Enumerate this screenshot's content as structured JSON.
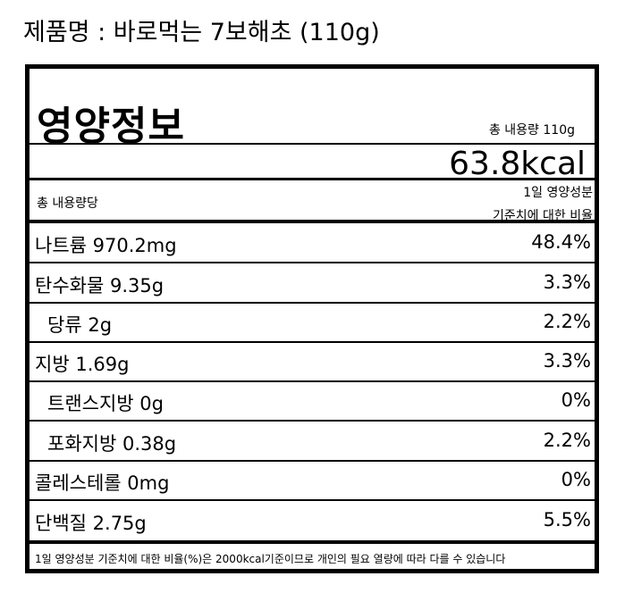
{
  "title": "제품명 : 바로먹는 7보해초 (110g)",
  "label": {
    "heading": "영양정보",
    "total": "총 내용량 110g",
    "calories": "63.8kcal",
    "per": "총 내용량당",
    "dv_header": [
      "1일 영양성분",
      "기준치에 대한 비율"
    ],
    "rows": [
      {
        "name": "나트륨",
        "amount": "970.2mg",
        "percent": "48.4%"
      },
      {
        "name": "탄수화물",
        "amount": "9.35g",
        "percent": "3.3%"
      },
      {
        "name": "당류",
        "amount": "2g",
        "percent": "2.2%"
      },
      {
        "name": "지방",
        "amount": "1.69g",
        "percent": "3.3%"
      },
      {
        "name": "트랜스지방",
        "amount": "0g",
        "percent": "0%"
      },
      {
        "name": "포화지방",
        "amount": "0.38g",
        "percent": "2.2%"
      },
      {
        "name": "콜레스테롤",
        "amount": "0mg",
        "percent": "0%"
      },
      {
        "name": "단백질",
        "amount": "2.75g",
        "percent": "5.5%"
      }
    ],
    "footnote": "1일 영양성분 기준치에 대한 비율(%)은 2000kcal기준이므로 개인의 필요 열량에 따라 다를 수 있습니다"
  }
}
